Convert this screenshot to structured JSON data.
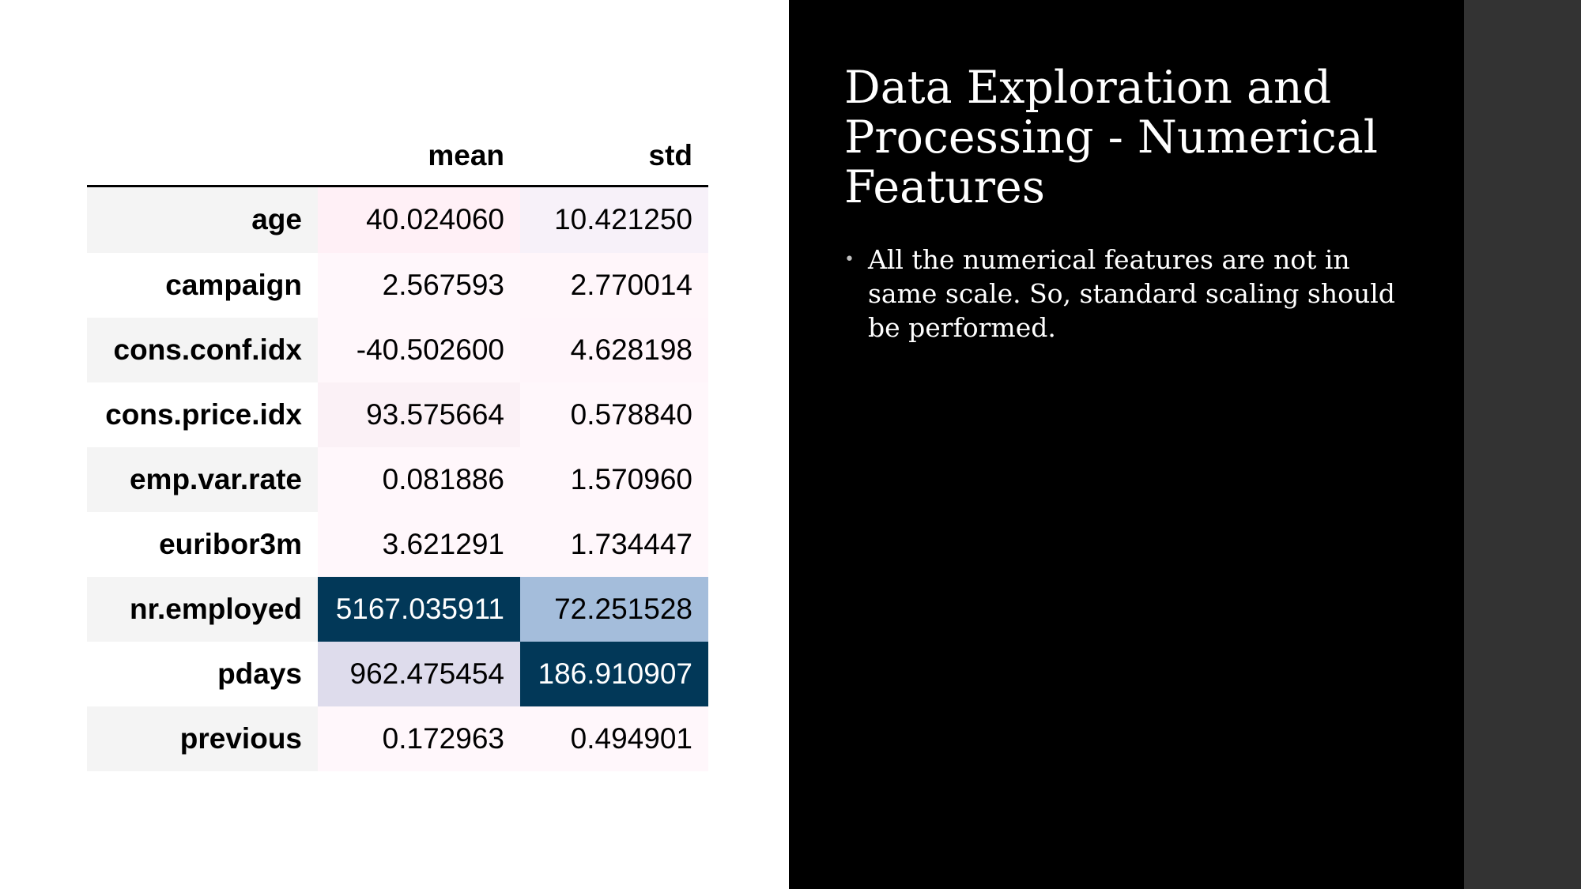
{
  "table": {
    "columns": [
      "mean",
      "std"
    ],
    "rows": [
      {
        "label": "age",
        "mean": "40.024060",
        "std": "10.421250",
        "mean_bg": "#fff0f6",
        "std_bg": "#f7f1f9",
        "mean_fg": "#000000",
        "std_fg": "#000000"
      },
      {
        "label": "campaign",
        "mean": "2.567593",
        "std": "2.770014",
        "mean_bg": "#fff7fb",
        "std_bg": "#fff6fa",
        "mean_fg": "#000000",
        "std_fg": "#000000"
      },
      {
        "label": "cons.conf.idx",
        "mean": "-40.502600",
        "std": "4.628198",
        "mean_bg": "#fff7fb",
        "std_bg": "#fff5fa",
        "mean_fg": "#000000",
        "std_fg": "#000000"
      },
      {
        "label": "cons.price.idx",
        "mean": "93.575664",
        "std": "0.578840",
        "mean_bg": "#fbf1f6",
        "std_bg": "#fff7fb",
        "mean_fg": "#000000",
        "std_fg": "#000000"
      },
      {
        "label": "emp.var.rate",
        "mean": "0.081886",
        "std": "1.570960",
        "mean_bg": "#fff7fb",
        "std_bg": "#fff7fb",
        "mean_fg": "#000000",
        "std_fg": "#000000"
      },
      {
        "label": "euribor3m",
        "mean": "3.621291",
        "std": "1.734447",
        "mean_bg": "#fff7fb",
        "std_bg": "#fff7fb",
        "mean_fg": "#000000",
        "std_fg": "#000000"
      },
      {
        "label": "nr.employed",
        "mean": "5167.035911",
        "std": "72.251528",
        "mean_bg": "#023858",
        "std_bg": "#a4bddb",
        "mean_fg": "#ffffff",
        "std_fg": "#000000"
      },
      {
        "label": "pdays",
        "mean": "962.475454",
        "std": "186.910907",
        "mean_bg": "#dedcec",
        "std_bg": "#023858",
        "mean_fg": "#000000",
        "std_fg": "#ffffff"
      },
      {
        "label": "previous",
        "mean": "0.172963",
        "std": "0.494901",
        "mean_bg": "#fff7fb",
        "std_bg": "#fff7fb",
        "mean_fg": "#000000",
        "std_fg": "#000000"
      }
    ]
  },
  "slide": {
    "title": "Data Exploration and Processing - Numerical Features",
    "bullets": [
      "All the numerical features are not in same scale. So, standard scaling should be performed."
    ]
  },
  "colors": {
    "right_panel": "#000000",
    "right_strip": "#333333",
    "heat_dark": "#023858",
    "heat_light": "#fff7fb"
  },
  "icons": {
    "bullet": "bullet-dot-icon"
  }
}
